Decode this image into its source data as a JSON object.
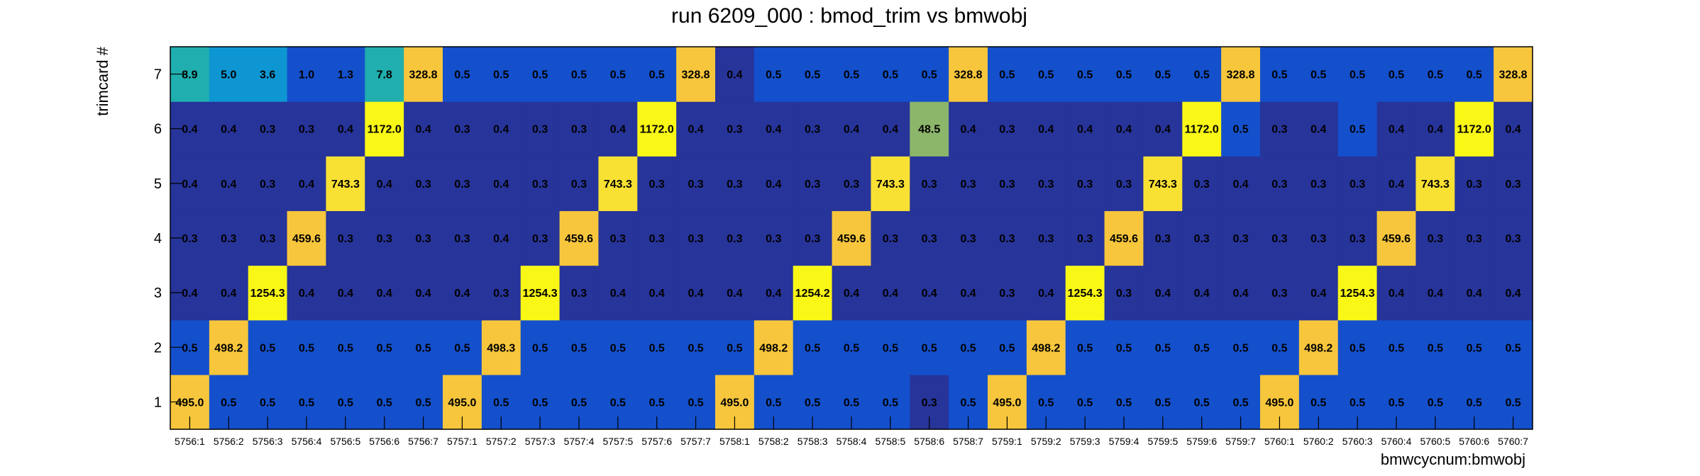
{
  "chart_data": {
    "type": "heatmap",
    "title": "run 6209_000 : bmod_trim vs bmwobj",
    "xlabel": "bmwcycnum:bmwobj",
    "ylabel": "trimcard #",
    "x_categories": [
      "5756:1",
      "5756:2",
      "5756:3",
      "5756:4",
      "5756:5",
      "5756:6",
      "5756:7",
      "5757:1",
      "5757:2",
      "5757:3",
      "5757:4",
      "5757:5",
      "5757:6",
      "5757:7",
      "5758:1",
      "5758:2",
      "5758:3",
      "5758:4",
      "5758:5",
      "5758:6",
      "5758:7",
      "5759:1",
      "5759:2",
      "5759:3",
      "5759:4",
      "5759:5",
      "5759:6",
      "5759:7",
      "5760:1",
      "5760:2",
      "5760:3",
      "5760:4",
      "5760:5",
      "5760:6",
      "5760:7"
    ],
    "y_categories": [
      "1",
      "2",
      "3",
      "4",
      "5",
      "6",
      "7"
    ],
    "values_text": [
      [
        "495.0",
        "0.5",
        "0.5",
        "0.5",
        "0.5",
        "0.5",
        "0.5",
        "495.0",
        "0.5",
        "0.5",
        "0.5",
        "0.5",
        "0.5",
        "0.5",
        "495.0",
        "0.5",
        "0.5",
        "0.5",
        "0.5",
        "0.3",
        "0.5",
        "495.0",
        "0.5",
        "0.5",
        "0.5",
        "0.5",
        "0.5",
        "0.5",
        "495.0",
        "0.5",
        "0.5",
        "0.5",
        "0.5",
        "0.5",
        "0.5"
      ],
      [
        "0.5",
        "498.2",
        "0.5",
        "0.5",
        "0.5",
        "0.5",
        "0.5",
        "0.5",
        "498.3",
        "0.5",
        "0.5",
        "0.5",
        "0.5",
        "0.5",
        "0.5",
        "498.2",
        "0.5",
        "0.5",
        "0.5",
        "0.5",
        "0.5",
        "0.5",
        "498.2",
        "0.5",
        "0.5",
        "0.5",
        "0.5",
        "0.5",
        "0.5",
        "498.2",
        "0.5",
        "0.5",
        "0.5",
        "0.5",
        "0.5"
      ],
      [
        "0.4",
        "0.4",
        "1254.3",
        "0.4",
        "0.4",
        "0.4",
        "0.4",
        "0.4",
        "0.3",
        "1254.3",
        "0.3",
        "0.4",
        "0.4",
        "0.4",
        "0.4",
        "0.4",
        "1254.2",
        "0.4",
        "0.4",
        "0.4",
        "0.4",
        "0.3",
        "0.4",
        "1254.3",
        "0.3",
        "0.4",
        "0.4",
        "0.4",
        "0.3",
        "0.4",
        "1254.3",
        "0.4",
        "0.4",
        "0.4",
        "0.4"
      ],
      [
        "0.3",
        "0.3",
        "0.3",
        "459.6",
        "0.3",
        "0.3",
        "0.3",
        "0.3",
        "0.4",
        "0.3",
        "459.6",
        "0.3",
        "0.3",
        "0.3",
        "0.3",
        "0.3",
        "0.3",
        "459.6",
        "0.3",
        "0.3",
        "0.3",
        "0.3",
        "0.3",
        "0.3",
        "459.6",
        "0.3",
        "0.3",
        "0.3",
        "0.3",
        "0.3",
        "0.3",
        "459.6",
        "0.3",
        "0.3",
        "0.3"
      ],
      [
        "0.4",
        "0.4",
        "0.3",
        "0.4",
        "743.3",
        "0.4",
        "0.3",
        "0.3",
        "0.4",
        "0.3",
        "0.3",
        "743.3",
        "0.3",
        "0.3",
        "0.3",
        "0.4",
        "0.3",
        "0.3",
        "743.3",
        "0.3",
        "0.3",
        "0.3",
        "0.3",
        "0.3",
        "0.3",
        "743.3",
        "0.3",
        "0.4",
        "0.3",
        "0.3",
        "0.3",
        "0.4",
        "743.3",
        "0.3",
        "0.3"
      ],
      [
        "0.4",
        "0.4",
        "0.3",
        "0.3",
        "0.4",
        "1172.0",
        "0.4",
        "0.3",
        "0.4",
        "0.3",
        "0.3",
        "0.4",
        "1172.0",
        "0.4",
        "0.3",
        "0.4",
        "0.3",
        "0.4",
        "0.4",
        "48.5",
        "0.4",
        "0.3",
        "0.4",
        "0.4",
        "0.4",
        "0.4",
        "1172.0",
        "0.5",
        "0.3",
        "0.4",
        "0.5",
        "0.4",
        "0.4",
        "1172.0",
        "0.4"
      ],
      [
        "8.9",
        "5.0",
        "3.6",
        "1.0",
        "1.3",
        "7.8",
        "328.8",
        "0.5",
        "0.5",
        "0.5",
        "0.5",
        "0.5",
        "0.5",
        "328.8",
        "0.4",
        "0.5",
        "0.5",
        "0.5",
        "0.5",
        "0.5",
        "328.8",
        "0.5",
        "0.5",
        "0.5",
        "0.5",
        "0.5",
        "0.5",
        "328.8",
        "0.5",
        "0.5",
        "0.5",
        "0.5",
        "0.5",
        "0.5",
        "328.8"
      ]
    ],
    "colors": {
      "dark_navy": "#27349a",
      "mid_blue": "#1450cc",
      "bright_yellow": "#f9f716",
      "light_yellow": "#f9e134",
      "gold": "#f7c63c",
      "teal": "#20aeae",
      "sky": "#0e96d2",
      "olive_green": "#8cb66a"
    }
  }
}
